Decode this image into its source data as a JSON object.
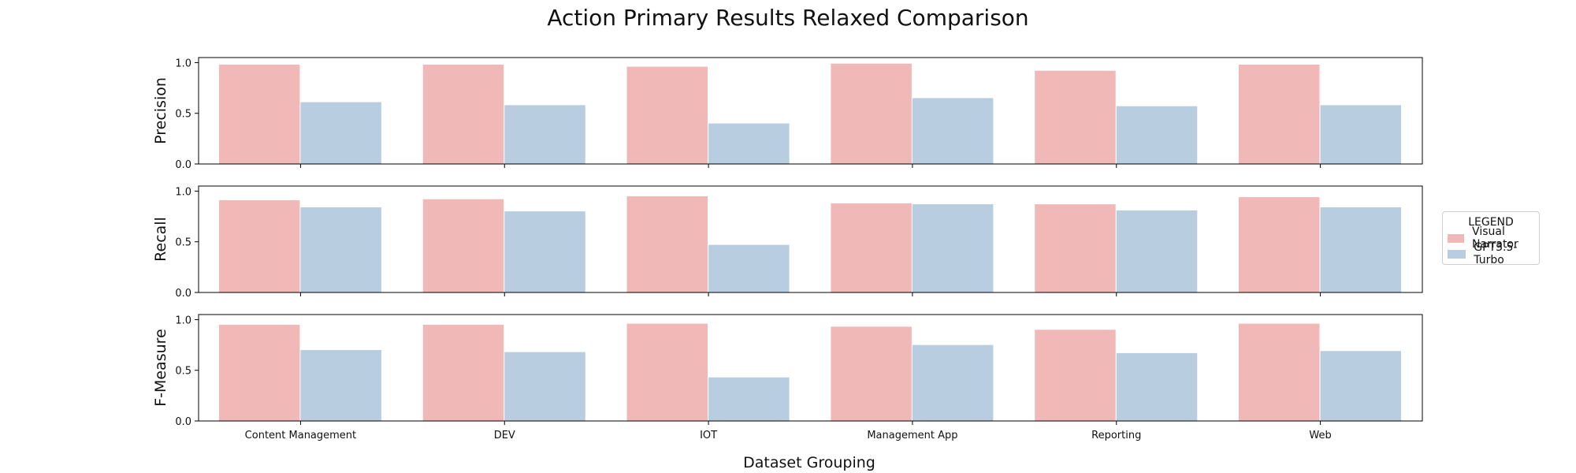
{
  "title": "Action Primary Results Relaxed Comparison",
  "xlabel": "Dataset Grouping",
  "legend": {
    "title": "LEGEND",
    "items": [
      {
        "label": "Visual Narrator",
        "color": "#f0b9b8"
      },
      {
        "label": "GPT3.5-Turbo",
        "color": "#b8cde0"
      }
    ]
  },
  "chart_data": [
    {
      "type": "bar",
      "ylabel": "Precision",
      "categories": [
        "Content Management",
        "DEV",
        "IOT",
        "Management App",
        "Reporting",
        "Web"
      ],
      "ylim": [
        0,
        1.05
      ],
      "yticks": [
        "0.0",
        "0.5",
        "1.0"
      ],
      "series": [
        {
          "name": "Visual Narrator",
          "values": [
            0.98,
            0.98,
            0.96,
            0.99,
            0.92,
            0.98
          ]
        },
        {
          "name": "GPT3.5-Turbo",
          "values": [
            0.61,
            0.58,
            0.4,
            0.65,
            0.57,
            0.58
          ]
        }
      ]
    },
    {
      "type": "bar",
      "ylabel": "Recall",
      "categories": [
        "Content Management",
        "DEV",
        "IOT",
        "Management App",
        "Reporting",
        "Web"
      ],
      "ylim": [
        0,
        1.05
      ],
      "yticks": [
        "0.0",
        "0.5",
        "1.0"
      ],
      "series": [
        {
          "name": "Visual Narrator",
          "values": [
            0.91,
            0.92,
            0.95,
            0.88,
            0.87,
            0.94
          ]
        },
        {
          "name": "GPT3.5-Turbo",
          "values": [
            0.84,
            0.8,
            0.47,
            0.87,
            0.81,
            0.84
          ]
        }
      ]
    },
    {
      "type": "bar",
      "ylabel": "F-Measure",
      "categories": [
        "Content Management",
        "DEV",
        "IOT",
        "Management App",
        "Reporting",
        "Web"
      ],
      "ylim": [
        0,
        1.05
      ],
      "yticks": [
        "0.0",
        "0.5",
        "1.0"
      ],
      "series": [
        {
          "name": "Visual Narrator",
          "values": [
            0.95,
            0.95,
            0.96,
            0.93,
            0.9,
            0.96
          ]
        },
        {
          "name": "GPT3.5-Turbo",
          "values": [
            0.7,
            0.68,
            0.43,
            0.75,
            0.67,
            0.69
          ]
        }
      ]
    }
  ]
}
